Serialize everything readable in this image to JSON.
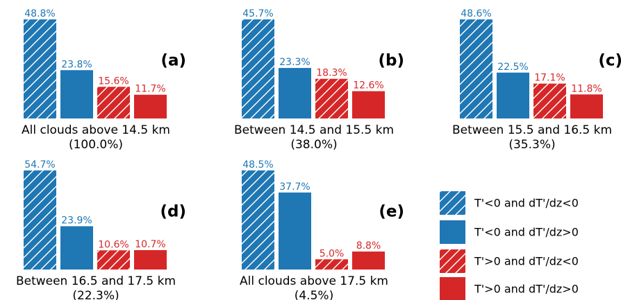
{
  "legend": [
    {
      "name": "T'<0 and dT'/dz<0",
      "color": "#1f77b4",
      "hatch": true
    },
    {
      "name": "T'<0 and dT'/dz>0",
      "color": "#1f77b4",
      "hatch": false
    },
    {
      "name": "T'>0 and dT'/dz<0",
      "color": "#d62728",
      "hatch": true
    },
    {
      "name": "T'>0 and dT'/dz>0",
      "color": "#d62728",
      "hatch": false
    }
  ],
  "chart_data": [
    {
      "type": "bar",
      "panel": "(a)",
      "xlabel": [
        "All clouds above 14.5 km",
        "(100.0%)"
      ],
      "values": [
        48.8,
        23.8,
        15.6,
        11.7
      ],
      "value_labels": [
        "48.8%",
        "23.8%",
        "15.6%",
        "11.7%"
      ]
    },
    {
      "type": "bar",
      "panel": "(b)",
      "xlabel": [
        "Between 14.5 and 15.5 km",
        "(38.0%)"
      ],
      "values": [
        45.7,
        23.3,
        18.3,
        12.6
      ],
      "value_labels": [
        "45.7%",
        "23.3%",
        "18.3%",
        "12.6%"
      ]
    },
    {
      "type": "bar",
      "panel": "(c)",
      "xlabel": [
        "Between 15.5 and 16.5 km",
        "(35.3%)"
      ],
      "values": [
        48.6,
        22.5,
        17.1,
        11.8
      ],
      "value_labels": [
        "48.6%",
        "22.5%",
        "17.1%",
        "11.8%"
      ]
    },
    {
      "type": "bar",
      "panel": "(d)",
      "xlabel": [
        "Between 16.5 and 17.5 km",
        "(22.3%)"
      ],
      "values": [
        54.7,
        23.9,
        10.6,
        10.7
      ],
      "value_labels": [
        "54.7%",
        "23.9%",
        "10.6%",
        "10.7%"
      ]
    },
    {
      "type": "bar",
      "panel": "(e)",
      "xlabel": [
        "All clouds above 17.5 km",
        "(4.5%)"
      ],
      "values": [
        48.5,
        37.7,
        5.0,
        8.8
      ],
      "value_labels": [
        "48.5%",
        "37.7%",
        "5.0%",
        "8.8%"
      ]
    }
  ]
}
